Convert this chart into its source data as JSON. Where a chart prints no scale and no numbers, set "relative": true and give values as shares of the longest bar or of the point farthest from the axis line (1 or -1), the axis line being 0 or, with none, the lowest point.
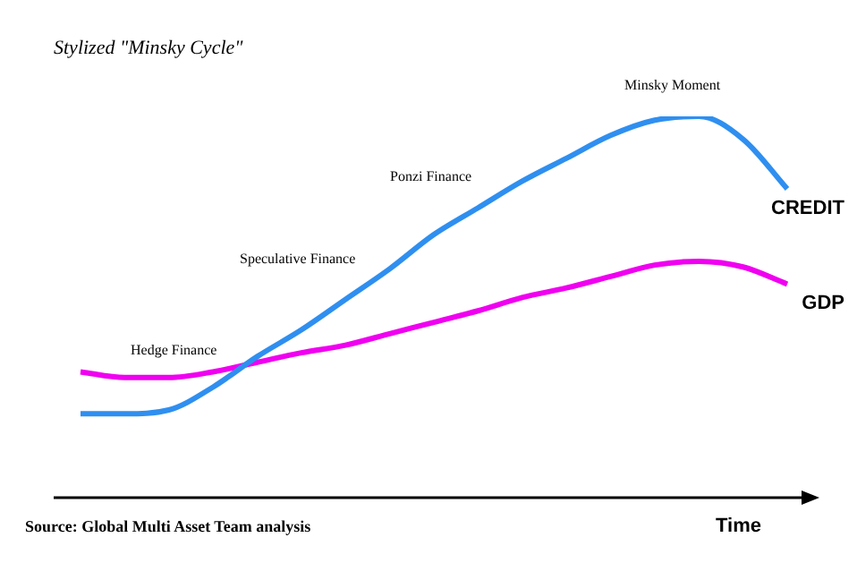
{
  "chart_data": {
    "type": "line",
    "title": "Stylized \"Minsky Cycle\"",
    "xlabel": "Time",
    "relative": true,
    "legend": false,
    "marker": "none",
    "line_style": "solid",
    "categories": [
      null,
      null,
      null,
      null,
      null,
      null,
      null,
      null,
      null,
      null,
      null,
      null,
      null,
      null,
      null,
      null,
      null
    ],
    "series": [
      {
        "name": "CREDIT",
        "color": "#2f8ff0",
        "values": [
          0.22,
          0.22,
          0.23,
          0.29,
          0.37,
          0.44,
          0.52,
          0.6,
          0.69,
          0.76,
          0.83,
          0.89,
          0.95,
          0.99,
          1,
          0.94,
          0.81
        ]
      },
      {
        "name": "GDP",
        "color": "#f000f0",
        "values": [
          0.33,
          0.315,
          0.315,
          0.33,
          0.355,
          0.38,
          0.4,
          0.43,
          0.46,
          0.49,
          0.525,
          0.55,
          0.58,
          0.61,
          0.62,
          0.605,
          0.56
        ]
      }
    ],
    "annotations": [
      "Hedge Finance",
      "Speculative Finance",
      "Ponzi Finance",
      "Minsky Moment",
      "Source: Global Multi Asset Team analysis"
    ]
  }
}
